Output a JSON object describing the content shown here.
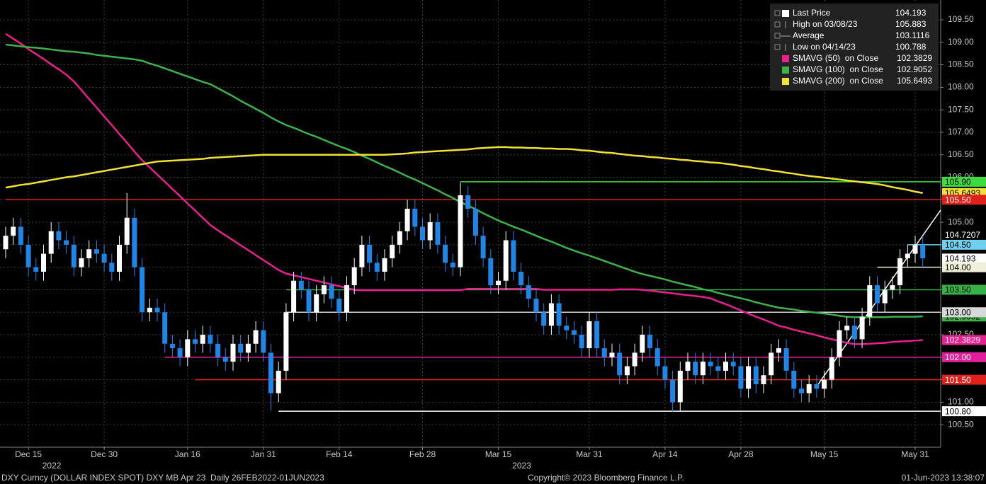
{
  "chart_data": {
    "type": "candlestick",
    "categories": [
      null,
      null,
      null,
      "Dec 15",
      null,
      null,
      null,
      null,
      null,
      null,
      null,
      null,
      null,
      "Dec 30",
      null,
      null,
      null,
      null,
      null,
      null,
      null,
      null,
      null,
      null,
      "Jan 16",
      null,
      null,
      null,
      null,
      null,
      null,
      null,
      null,
      null,
      "Jan 31",
      null,
      null,
      null,
      null,
      null,
      null,
      null,
      null,
      null,
      "Feb 14",
      null,
      null,
      null,
      null,
      null,
      null,
      null,
      null,
      null,
      null,
      "Feb 28",
      null,
      null,
      null,
      null,
      null,
      null,
      null,
      null,
      null,
      "Mar 15",
      null,
      null,
      null,
      null,
      null,
      null,
      null,
      null,
      null,
      null,
      null,
      "Mar 31",
      null,
      null,
      null,
      null,
      null,
      null,
      null,
      null,
      null,
      "Apr 14",
      null,
      null,
      null,
      null,
      null,
      null,
      null,
      null,
      null,
      "Apr 28",
      null,
      null,
      null,
      null,
      null,
      null,
      null,
      null,
      null,
      null,
      "May 15",
      null,
      null,
      null,
      null,
      null,
      null,
      null,
      null,
      null,
      null,
      null,
      "May 31",
      null
    ],
    "year_labels": [
      "2022",
      "2023"
    ],
    "up_color": "#ffffff",
    "down_color": "#1f86e8",
    "open": [
      104.4,
      104.7,
      104.9,
      104.5,
      104.0,
      103.9,
      104.3,
      104.8,
      104.6,
      104.5,
      104.0,
      104.2,
      104.4,
      104.3,
      104.1,
      103.9,
      104.5,
      105.1,
      104.0,
      103.0,
      103.1,
      103.0,
      102.3,
      102.2,
      102.0,
      102.4,
      102.3,
      102.5,
      102.3,
      102.0,
      101.9,
      102.3,
      102.1,
      102.3,
      102.6,
      102.1,
      101.2,
      101.7,
      103.0,
      103.7,
      103.5,
      103.0,
      103.4,
      103.6,
      103.3,
      103.0,
      103.6,
      104.0,
      104.5,
      104.1,
      103.9,
      104.2,
      104.5,
      104.8,
      105.3,
      104.9,
      104.6,
      105.0,
      104.5,
      104.1,
      104.0,
      105.6,
      105.3,
      104.7,
      104.2,
      103.6,
      103.7,
      104.6,
      103.9,
      103.6,
      103.3,
      103.0,
      102.7,
      103.2,
      102.7,
      102.6,
      102.5,
      102.2,
      102.8,
      102.2,
      102.0,
      102.1,
      101.6,
      101.8,
      102.1,
      102.5,
      102.2,
      101.8,
      101.5,
      101.0,
      101.7,
      101.9,
      101.6,
      101.9,
      101.8,
      101.7,
      101.9,
      101.8,
      101.3,
      101.8,
      101.4,
      101.6,
      102.1,
      102.2,
      101.7,
      101.3,
      101.2,
      101.4,
      101.3,
      101.5,
      102.0,
      102.6,
      102.7,
      102.4,
      102.9,
      103.6,
      103.2,
      103.5,
      103.6,
      104.2,
      104.3,
      104.5
    ],
    "high": [
      104.9,
      105.1,
      105.1,
      104.7,
      104.2,
      104.5,
      105.0,
      105.0,
      104.8,
      104.7,
      104.4,
      104.6,
      104.6,
      104.5,
      104.3,
      104.7,
      105.65,
      105.3,
      104.2,
      103.3,
      103.3,
      103.2,
      102.5,
      102.4,
      102.6,
      102.6,
      102.7,
      102.7,
      102.5,
      102.2,
      102.5,
      102.5,
      102.5,
      102.8,
      102.8,
      102.3,
      101.9,
      103.2,
      103.9,
      103.9,
      103.7,
      103.6,
      103.8,
      103.8,
      103.5,
      103.8,
      104.2,
      104.7,
      104.7,
      104.3,
      104.4,
      104.7,
      105.0,
      105.5,
      105.5,
      105.1,
      105.2,
      105.2,
      104.7,
      104.3,
      105.88,
      105.8,
      105.5,
      104.9,
      104.4,
      103.9,
      104.8,
      104.8,
      104.1,
      103.8,
      103.5,
      103.2,
      103.4,
      103.4,
      102.9,
      102.8,
      102.7,
      103.0,
      103.0,
      102.4,
      102.3,
      102.3,
      102.0,
      102.3,
      102.7,
      102.7,
      102.4,
      102.0,
      101.7,
      101.9,
      102.1,
      102.1,
      102.1,
      102.1,
      102.0,
      102.1,
      102.1,
      102.0,
      102.0,
      102.0,
      101.8,
      102.3,
      102.4,
      102.4,
      101.9,
      101.5,
      101.6,
      101.6,
      101.7,
      102.2,
      102.8,
      102.9,
      102.9,
      103.1,
      103.8,
      103.8,
      103.7,
      103.8,
      104.4,
      104.5,
      104.7,
      104.7
    ],
    "low": [
      104.2,
      104.5,
      104.3,
      103.8,
      103.7,
      103.7,
      104.1,
      104.4,
      104.3,
      103.8,
      103.8,
      104.0,
      104.1,
      103.9,
      103.7,
      103.7,
      104.3,
      103.8,
      102.8,
      102.8,
      102.8,
      102.1,
      102.0,
      101.8,
      101.8,
      102.1,
      102.1,
      102.1,
      101.8,
      101.7,
      101.7,
      101.9,
      101.9,
      102.1,
      101.9,
      100.82,
      101.0,
      101.5,
      102.8,
      103.3,
      102.8,
      102.8,
      103.2,
      103.1,
      102.8,
      102.8,
      103.4,
      103.8,
      103.9,
      103.7,
      103.7,
      104.0,
      104.3,
      104.6,
      104.7,
      104.4,
      104.4,
      104.3,
      103.9,
      103.8,
      103.8,
      105.1,
      104.5,
      104.0,
      103.4,
      103.4,
      103.5,
      103.7,
      103.4,
      103.1,
      102.8,
      102.5,
      102.5,
      102.5,
      102.4,
      102.3,
      102.0,
      102.0,
      102.0,
      101.8,
      101.8,
      101.4,
      101.4,
      101.6,
      101.9,
      102.0,
      101.6,
      101.3,
      100.79,
      100.8,
      101.5,
      101.4,
      101.4,
      101.6,
      101.5,
      101.5,
      101.6,
      101.1,
      101.1,
      101.2,
      101.2,
      101.4,
      101.9,
      101.5,
      101.1,
      101.0,
      101.0,
      101.1,
      101.1,
      101.3,
      101.8,
      102.4,
      102.2,
      102.2,
      102.7,
      103.0,
      103.0,
      103.3,
      103.4,
      104.0,
      104.1,
      104.0
    ],
    "close": [
      104.7,
      104.9,
      104.5,
      104.0,
      103.9,
      104.3,
      104.8,
      104.6,
      104.5,
      104.0,
      104.2,
      104.4,
      104.3,
      104.1,
      103.9,
      104.5,
      105.1,
      104.0,
      103.0,
      103.1,
      103.0,
      102.3,
      102.2,
      102.0,
      102.4,
      102.3,
      102.5,
      102.3,
      102.0,
      101.9,
      102.3,
      102.1,
      102.3,
      102.6,
      102.1,
      101.2,
      101.7,
      103.0,
      103.7,
      103.5,
      103.0,
      103.4,
      103.6,
      103.3,
      103.0,
      103.6,
      104.0,
      104.5,
      104.1,
      103.9,
      104.2,
      104.5,
      104.8,
      105.3,
      104.9,
      104.6,
      105.0,
      104.5,
      104.1,
      104.0,
      105.6,
      105.3,
      104.7,
      104.2,
      103.6,
      103.7,
      104.6,
      103.9,
      103.6,
      103.3,
      103.0,
      102.7,
      103.2,
      102.7,
      102.6,
      102.5,
      102.2,
      102.8,
      102.2,
      102.0,
      102.1,
      101.6,
      101.8,
      102.1,
      102.5,
      102.2,
      101.8,
      101.5,
      101.0,
      101.7,
      101.9,
      101.6,
      101.9,
      101.8,
      101.7,
      101.9,
      101.8,
      101.3,
      101.8,
      101.4,
      101.6,
      102.1,
      102.2,
      101.7,
      101.3,
      101.2,
      101.4,
      101.3,
      101.5,
      102.0,
      102.6,
      102.7,
      102.4,
      102.9,
      103.6,
      103.2,
      103.5,
      103.6,
      104.2,
      104.3,
      104.5,
      104.2
    ],
    "series": [
      {
        "name": "SMAVG (50)  on Close",
        "color": "#e8208f",
        "last": 102.3829,
        "values": [
          109.19,
          109.08,
          108.97,
          108.85,
          108.74,
          108.63,
          108.51,
          108.4,
          108.28,
          108.13,
          107.94,
          107.74,
          107.55,
          107.35,
          107.16,
          106.96,
          106.77,
          106.57,
          106.38,
          106.22,
          106.06,
          105.9,
          105.74,
          105.58,
          105.42,
          105.26,
          105.1,
          104.94,
          104.82,
          104.71,
          104.6,
          104.49,
          104.38,
          104.27,
          104.16,
          104.05,
          103.94,
          103.86,
          103.82,
          103.78,
          103.74,
          103.7,
          103.66,
          103.62,
          103.58,
          103.54,
          103.5,
          103.49,
          103.49,
          103.49,
          103.49,
          103.49,
          103.49,
          103.49,
          103.49,
          103.49,
          103.49,
          103.49,
          103.49,
          103.49,
          103.49,
          103.52,
          103.52,
          103.52,
          103.52,
          103.52,
          103.52,
          103.52,
          103.52,
          103.52,
          103.52,
          103.5,
          103.5,
          103.5,
          103.5,
          103.5,
          103.5,
          103.5,
          103.5,
          103.5,
          103.5,
          103.51,
          103.51,
          103.51,
          103.5,
          103.48,
          103.46,
          103.44,
          103.42,
          103.4,
          103.38,
          103.36,
          103.34,
          103.31,
          103.24,
          103.18,
          103.11,
          103.04,
          102.97,
          102.9,
          102.84,
          102.77,
          102.7,
          102.66,
          102.61,
          102.57,
          102.53,
          102.49,
          102.44,
          102.4,
          102.36,
          102.32,
          102.29,
          102.29,
          102.3,
          102.31,
          102.32,
          102.34,
          102.35,
          102.36,
          102.37,
          102.38
        ]
      },
      {
        "name": "SMAVG (100)  on Close",
        "color": "#3cb34a",
        "last": 102.9052,
        "values": [
          108.95,
          108.93,
          108.91,
          108.89,
          108.88,
          108.86,
          108.84,
          108.82,
          108.8,
          108.79,
          108.77,
          108.75,
          108.72,
          108.7,
          108.68,
          108.66,
          108.64,
          108.62,
          108.59,
          108.53,
          108.48,
          108.42,
          108.36,
          108.3,
          108.24,
          108.18,
          108.12,
          108.07,
          107.98,
          107.89,
          107.8,
          107.7,
          107.61,
          107.52,
          107.43,
          107.33,
          107.24,
          107.16,
          107.1,
          107.03,
          106.96,
          106.9,
          106.83,
          106.76,
          106.69,
          106.63,
          106.56,
          106.48,
          106.41,
          106.33,
          106.25,
          106.18,
          106.1,
          106.02,
          105.95,
          105.87,
          105.79,
          105.71,
          105.62,
          105.54,
          105.45,
          105.37,
          105.29,
          105.2,
          105.12,
          105.04,
          104.97,
          104.9,
          104.84,
          104.77,
          104.7,
          104.63,
          104.57,
          104.5,
          104.43,
          104.37,
          104.31,
          104.26,
          104.2,
          104.14,
          104.08,
          104.02,
          103.96,
          103.9,
          103.85,
          103.81,
          103.77,
          103.73,
          103.68,
          103.64,
          103.6,
          103.56,
          103.51,
          103.48,
          103.43,
          103.39,
          103.35,
          103.31,
          103.27,
          103.22,
          103.18,
          103.14,
          103.1,
          103.08,
          103.06,
          103.03,
          103.01,
          102.99,
          102.97,
          102.95,
          102.92,
          102.9,
          102.89,
          102.89,
          102.89,
          102.89,
          102.89,
          102.9,
          102.9,
          102.9,
          102.9,
          102.91
        ]
      },
      {
        "name": "SMAVG (200)  on Close",
        "color": "#f2e135",
        "last": 105.6493,
        "values": [
          105.77,
          105.8,
          105.83,
          105.85,
          105.88,
          105.91,
          105.94,
          105.97,
          106.0,
          106.02,
          106.05,
          106.08,
          106.11,
          106.14,
          106.17,
          106.2,
          106.23,
          106.26,
          106.29,
          106.32,
          106.35,
          106.36,
          106.37,
          106.38,
          106.39,
          106.4,
          106.41,
          106.43,
          106.44,
          106.45,
          106.46,
          106.47,
          106.48,
          106.49,
          106.5,
          106.5,
          106.5,
          106.5,
          106.5,
          106.5,
          106.5,
          106.5,
          106.5,
          106.5,
          106.5,
          106.5,
          106.5,
          106.5,
          106.5,
          106.5,
          106.5,
          106.51,
          106.52,
          106.53,
          106.55,
          106.56,
          106.57,
          106.58,
          106.59,
          106.6,
          106.61,
          106.62,
          106.64,
          106.65,
          106.66,
          106.67,
          106.67,
          106.66,
          106.66,
          106.65,
          106.65,
          106.64,
          106.64,
          106.63,
          106.63,
          106.62,
          106.6,
          106.59,
          106.57,
          106.55,
          106.54,
          106.52,
          106.5,
          106.48,
          106.47,
          106.45,
          106.44,
          106.42,
          106.41,
          106.39,
          106.38,
          106.36,
          106.35,
          106.33,
          106.32,
          106.3,
          106.28,
          106.25,
          106.23,
          106.2,
          106.18,
          106.15,
          106.13,
          106.1,
          106.08,
          106.05,
          106.03,
          106.01,
          105.99,
          105.97,
          105.95,
          105.93,
          105.91,
          105.89,
          105.87,
          105.85,
          105.82,
          105.78,
          105.75,
          105.72,
          105.68,
          105.65
        ]
      }
    ],
    "legend": [
      {
        "name": "Last Price",
        "value": 104.193
      },
      {
        "name": "High on 03/08/23",
        "value": 105.883
      },
      {
        "name": "Average",
        "value": 103.1116
      },
      {
        "name": "Low on 04/14/23",
        "value": 100.788
      }
    ],
    "ylim": [
      100,
      109.94
    ],
    "yticks": [
      {
        "value": 100.5,
        "label": "100.50"
      },
      {
        "value": 101,
        "label": "101.00"
      },
      {
        "value": 101.5,
        "label": "101.50"
      },
      {
        "value": 102,
        "label": "102.00"
      },
      {
        "value": 102.5,
        "label": "102.50"
      },
      {
        "value": 103,
        "label": "103.00"
      },
      {
        "value": 103.5,
        "label": "103.50"
      },
      {
        "value": 104,
        "label": "104.00"
      },
      {
        "value": 104.5,
        "label": "104.50"
      },
      {
        "value": 105,
        "label": "105.00"
      },
      {
        "value": 105.5,
        "label": "105.50"
      },
      {
        "value": 106,
        "label": "106.00"
      },
      {
        "value": 106.5,
        "label": "106.50"
      },
      {
        "value": 107,
        "label": "107.00"
      },
      {
        "value": 107.5,
        "label": "107.50"
      },
      {
        "value": 108,
        "label": "108.00"
      },
      {
        "value": 108.5,
        "label": "108.50"
      },
      {
        "value": 109,
        "label": "109.00"
      },
      {
        "value": 109.5,
        "label": "109.50"
      }
    ],
    "grid": true,
    "price_tags": [
      {
        "value": 105.6493,
        "label": "105.6493",
        "color": "#f2e135",
        "text_color": "#000000"
      },
      {
        "value": 104.7207,
        "label": "104.7207",
        "color": "#000000",
        "text_color": "#ffffff"
      },
      {
        "value": 104.193,
        "label": "104.193",
        "color": "#ffffff",
        "text_color": "#000000"
      },
      {
        "value": 102.9052,
        "label": "102.9052",
        "color": "#3cb34a",
        "text_color": "#000000"
      }
    ],
    "levels": [
      {
        "value": 105.9,
        "label": "105.90",
        "color": "#3ddc3d",
        "text_color": "#000000",
        "start": 60
      },
      {
        "value": 105.5,
        "label": "105.50",
        "color": "#e0201b",
        "text_color": "#ffffff",
        "start": 0
      },
      {
        "value": 104.5,
        "label": "104.50",
        "color": "#6fd0f0",
        "text_color": "#000000",
        "start": 119
      },
      {
        "value": 104.0,
        "label": "104.00",
        "color": "#f0f0d8",
        "text_color": "#000000",
        "start": 115
      },
      {
        "value": 103.5,
        "label": "103.50",
        "color": "#38b048",
        "text_color": "#000000",
        "start": 37
      },
      {
        "value": 103.0,
        "label": "103.00",
        "color": "#d8d8d8",
        "text_color": "#000000",
        "start": 37
      },
      {
        "value": 102.0,
        "label": "102.00",
        "color": "#e0209a",
        "text_color": "#ffffff",
        "start": 21
      },
      {
        "value": 101.5,
        "label": "101.50",
        "color": "#e0201b",
        "text_color": "#ffffff",
        "start": 25
      },
      {
        "value": 100.8,
        "label": "100.80",
        "color": "#ffffff",
        "text_color": "#000000",
        "start": 36
      }
    ],
    "last_tag": {
      "value": 102.3829,
      "label": "102.3829",
      "color": "#e8208f",
      "text_color": "#ffffff"
    },
    "trendline": {
      "x": [
        107,
        123.4
      ],
      "y": [
        101.35,
        105.27
      ],
      "color": "#ffffff"
    },
    "footer": {
      "left": "DXY Curncy (DOLLAR INDEX SPOT) DXY MB Apr 23  Daily 26FEB2022-01JUN2023",
      "center": "Copyright© 2023 Bloomberg Finance L.P.",
      "right": "01-Jun-2023 13:38:07"
    }
  }
}
